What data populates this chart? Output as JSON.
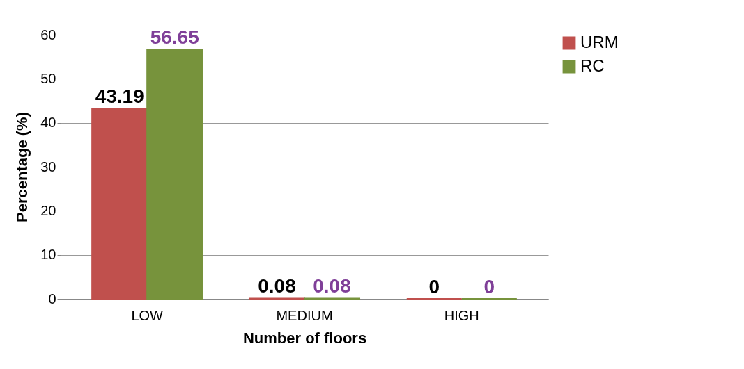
{
  "chart_data": {
    "type": "bar",
    "xlabel": "Number of floors",
    "ylabel": "Percentage (%)",
    "categories": [
      "LOW",
      "MEDIUM",
      "HIGH"
    ],
    "series": [
      {
        "name": "URM",
        "color": "#c0504d",
        "values": [
          43.19,
          0.08,
          0
        ]
      },
      {
        "name": "RC",
        "color": "#77933c",
        "values": [
          56.65,
          0.08,
          0
        ]
      }
    ],
    "ylim": [
      0,
      60
    ],
    "yticks": [
      0,
      10,
      20,
      30,
      40,
      50,
      60
    ],
    "grid": "y",
    "legend": "right",
    "data_labels": true
  }
}
